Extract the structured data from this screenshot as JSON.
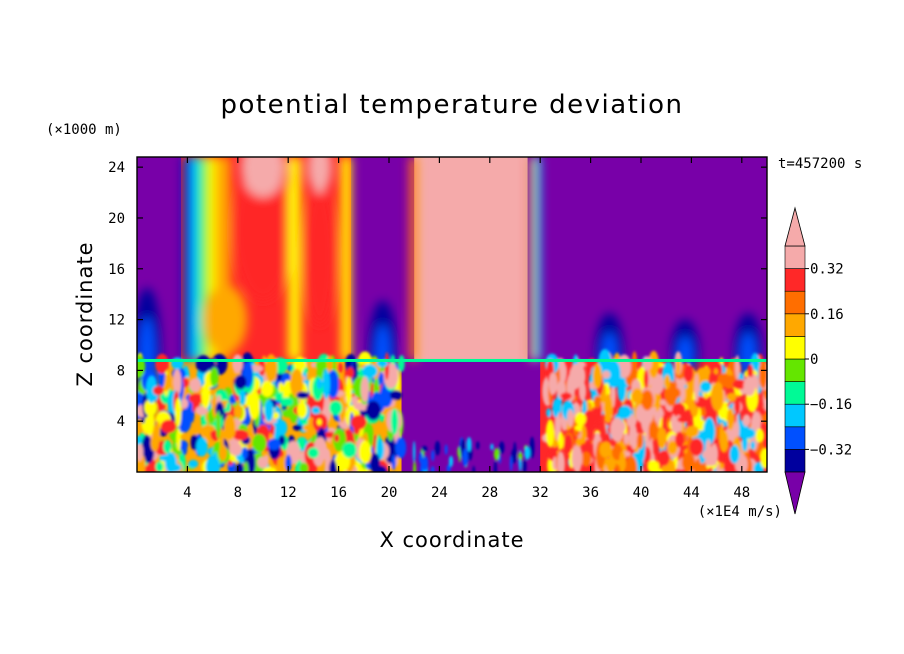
{
  "chart_data": {
    "type": "heatmap",
    "title": "potential temperature deviation",
    "xlabel": "X coordinate",
    "ylabel": "Z coordinate",
    "x_unit": "(×1E4 m/s)",
    "y_unit": "(×1000 m)",
    "time_label": "t=457200 s",
    "xlim": [
      0,
      50
    ],
    "ylim": [
      0,
      24.8
    ],
    "x_ticks": [
      4,
      8,
      12,
      16,
      20,
      24,
      28,
      32,
      36,
      40,
      44,
      48
    ],
    "y_ticks": [
      4,
      8,
      12,
      16,
      20,
      24
    ],
    "colorbar": {
      "levels": [
        -0.4,
        -0.32,
        -0.24,
        -0.16,
        -0.08,
        0,
        0.08,
        0.16,
        0.24,
        0.32,
        0.4
      ],
      "labels": [
        "0.32",
        "0.16",
        "0",
        "−0.16",
        "−0.32"
      ],
      "label_values": [
        0.32,
        0.16,
        0,
        -0.16,
        -0.32
      ],
      "colors": [
        "#7800A8",
        "#00009E",
        "#0050FF",
        "#00C8FF",
        "#00FA96",
        "#64E600",
        "#FFFF00",
        "#FFA800",
        "#FF6E00",
        "#FF2828",
        "#F5AAAA"
      ]
    },
    "regions": [
      {
        "x": [
          0,
          3.5
        ],
        "z": [
          8.8,
          24.8
        ],
        "value": -0.45
      },
      {
        "x": [
          3.5,
          17
        ],
        "z": [
          8.8,
          24.8
        ],
        "value": 0.25
      },
      {
        "x": [
          17,
          22
        ],
        "z": [
          8.8,
          24.8
        ],
        "value": -0.45
      },
      {
        "x": [
          22,
          31
        ],
        "z": [
          8.8,
          24.8
        ],
        "value": 0.45
      },
      {
        "x": [
          31.5,
          50
        ],
        "z": [
          8.8,
          24.8
        ],
        "value": -0.45
      },
      {
        "x": [
          0,
          21
        ],
        "z": [
          0,
          8.8
        ],
        "value": 0.1
      },
      {
        "x": [
          21,
          32
        ],
        "z": [
          0,
          8.8
        ],
        "value": -0.45
      },
      {
        "x": [
          32,
          50
        ],
        "z": [
          0,
          8.8
        ],
        "value": 0.3
      }
    ]
  }
}
